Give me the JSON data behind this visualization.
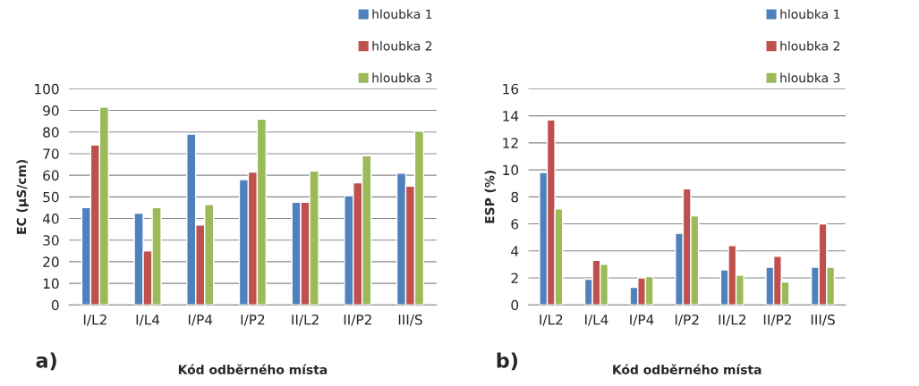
{
  "chart_data": [
    {
      "type": "bar",
      "ylabel": "EC (µS/cm)",
      "xlabel": "Kód odběrného místa",
      "annotations": [
        "a)"
      ],
      "categories": [
        "I/L2",
        "I/L4",
        "I/P4",
        "I/P2",
        "II/L2",
        "II/P2",
        "III/S"
      ],
      "series": [
        {
          "name": "hloubka 1",
          "color": "#4f81bd",
          "values": [
            45,
            42.5,
            79,
            58,
            47.5,
            50.5,
            61
          ]
        },
        {
          "name": "hloubka 2",
          "color": "#c0504d",
          "values": [
            74,
            25,
            37,
            61.5,
            47.5,
            56.5,
            55
          ]
        },
        {
          "name": "hloubka 3",
          "color": "#9bbb59",
          "values": [
            91.5,
            45,
            46.5,
            86,
            62,
            69,
            80.5
          ]
        }
      ],
      "ylim": [
        0,
        100
      ],
      "yticks": [
        0,
        10,
        20,
        30,
        40,
        50,
        60,
        70,
        80,
        90,
        100
      ],
      "grid": "y",
      "legend": "top right"
    },
    {
      "type": "bar",
      "ylabel": "ESP (%)",
      "xlabel": "Kód odběrného místa",
      "annotations": [
        "b)"
      ],
      "categories": [
        "I/L2",
        "I/L4",
        "I/P4",
        "I/P2",
        "II/L2",
        "II/P2",
        "III/S"
      ],
      "series": [
        {
          "name": "hloubka 1",
          "color": "#4f81bd",
          "values": [
            9.8,
            1.9,
            1.3,
            5.3,
            2.6,
            2.8,
            2.8
          ]
        },
        {
          "name": "hloubka 2",
          "color": "#c0504d",
          "values": [
            13.7,
            3.3,
            2.0,
            8.6,
            4.4,
            3.6,
            6.0
          ]
        },
        {
          "name": "hloubka 3",
          "color": "#9bbb59",
          "values": [
            7.1,
            3.0,
            2.1,
            6.6,
            2.2,
            1.7,
            2.8
          ]
        }
      ],
      "ylim": [
        0,
        16
      ],
      "yticks": [
        0,
        2,
        4,
        6,
        8,
        10,
        12,
        14,
        16
      ],
      "grid": "y",
      "legend": "top right"
    }
  ]
}
